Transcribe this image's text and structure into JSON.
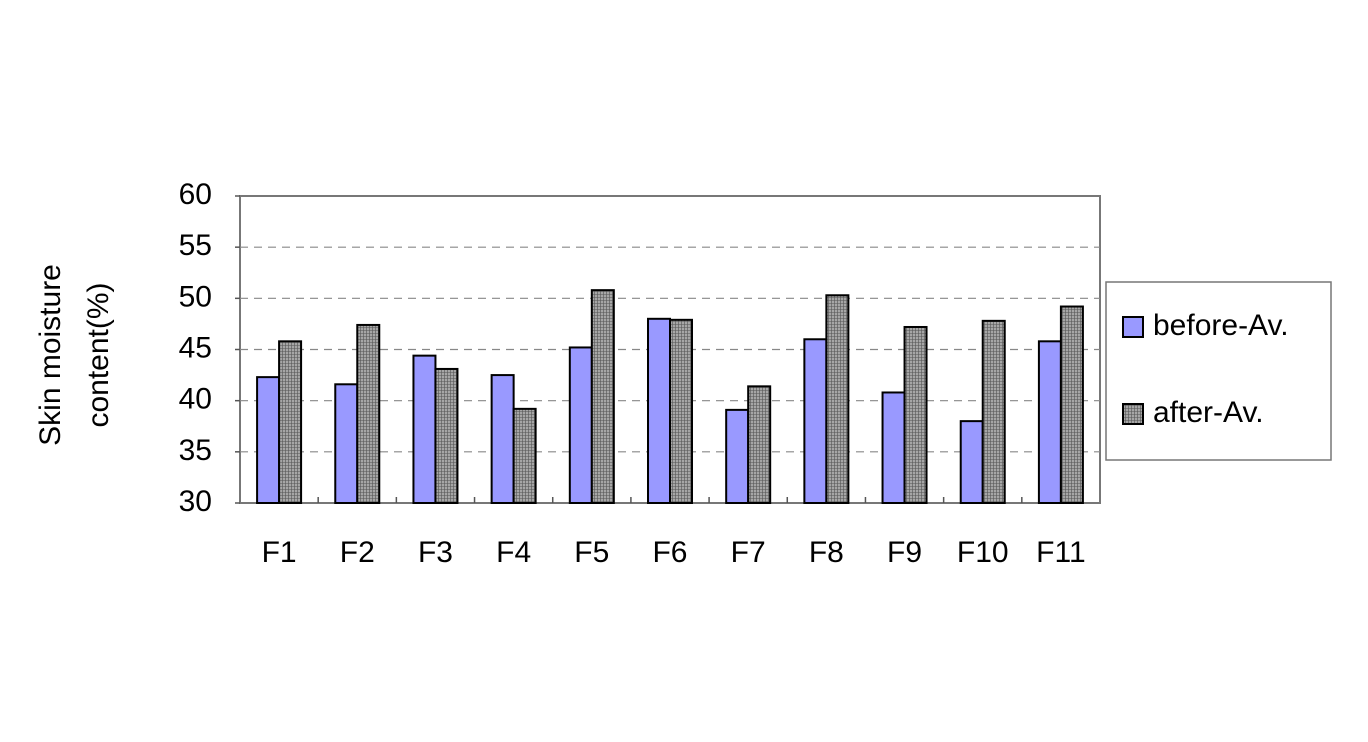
{
  "chart_data": {
    "type": "bar",
    "y_label": [
      "Skin moisture",
      "content(%)"
    ],
    "categories": [
      "F1",
      "F2",
      "F3",
      "F4",
      "F5",
      "F6",
      "F7",
      "F8",
      "F9",
      "F10",
      "F11"
    ],
    "series": [
      {
        "name": "before-Av.",
        "color": "#9999ff",
        "values": [
          42.3,
          41.6,
          44.4,
          42.5,
          45.2,
          48.0,
          39.1,
          46.0,
          40.8,
          38.0,
          45.8
        ]
      },
      {
        "name": "after-Av.",
        "color": "#a6a6a6",
        "values": [
          45.8,
          47.4,
          43.1,
          39.2,
          50.8,
          47.9,
          41.4,
          50.3,
          47.2,
          47.8,
          49.2
        ]
      }
    ],
    "ylim": [
      30,
      60
    ],
    "yticks": [
      30,
      35,
      40,
      45,
      50,
      55,
      60
    ],
    "grid": true,
    "legend": "right"
  }
}
